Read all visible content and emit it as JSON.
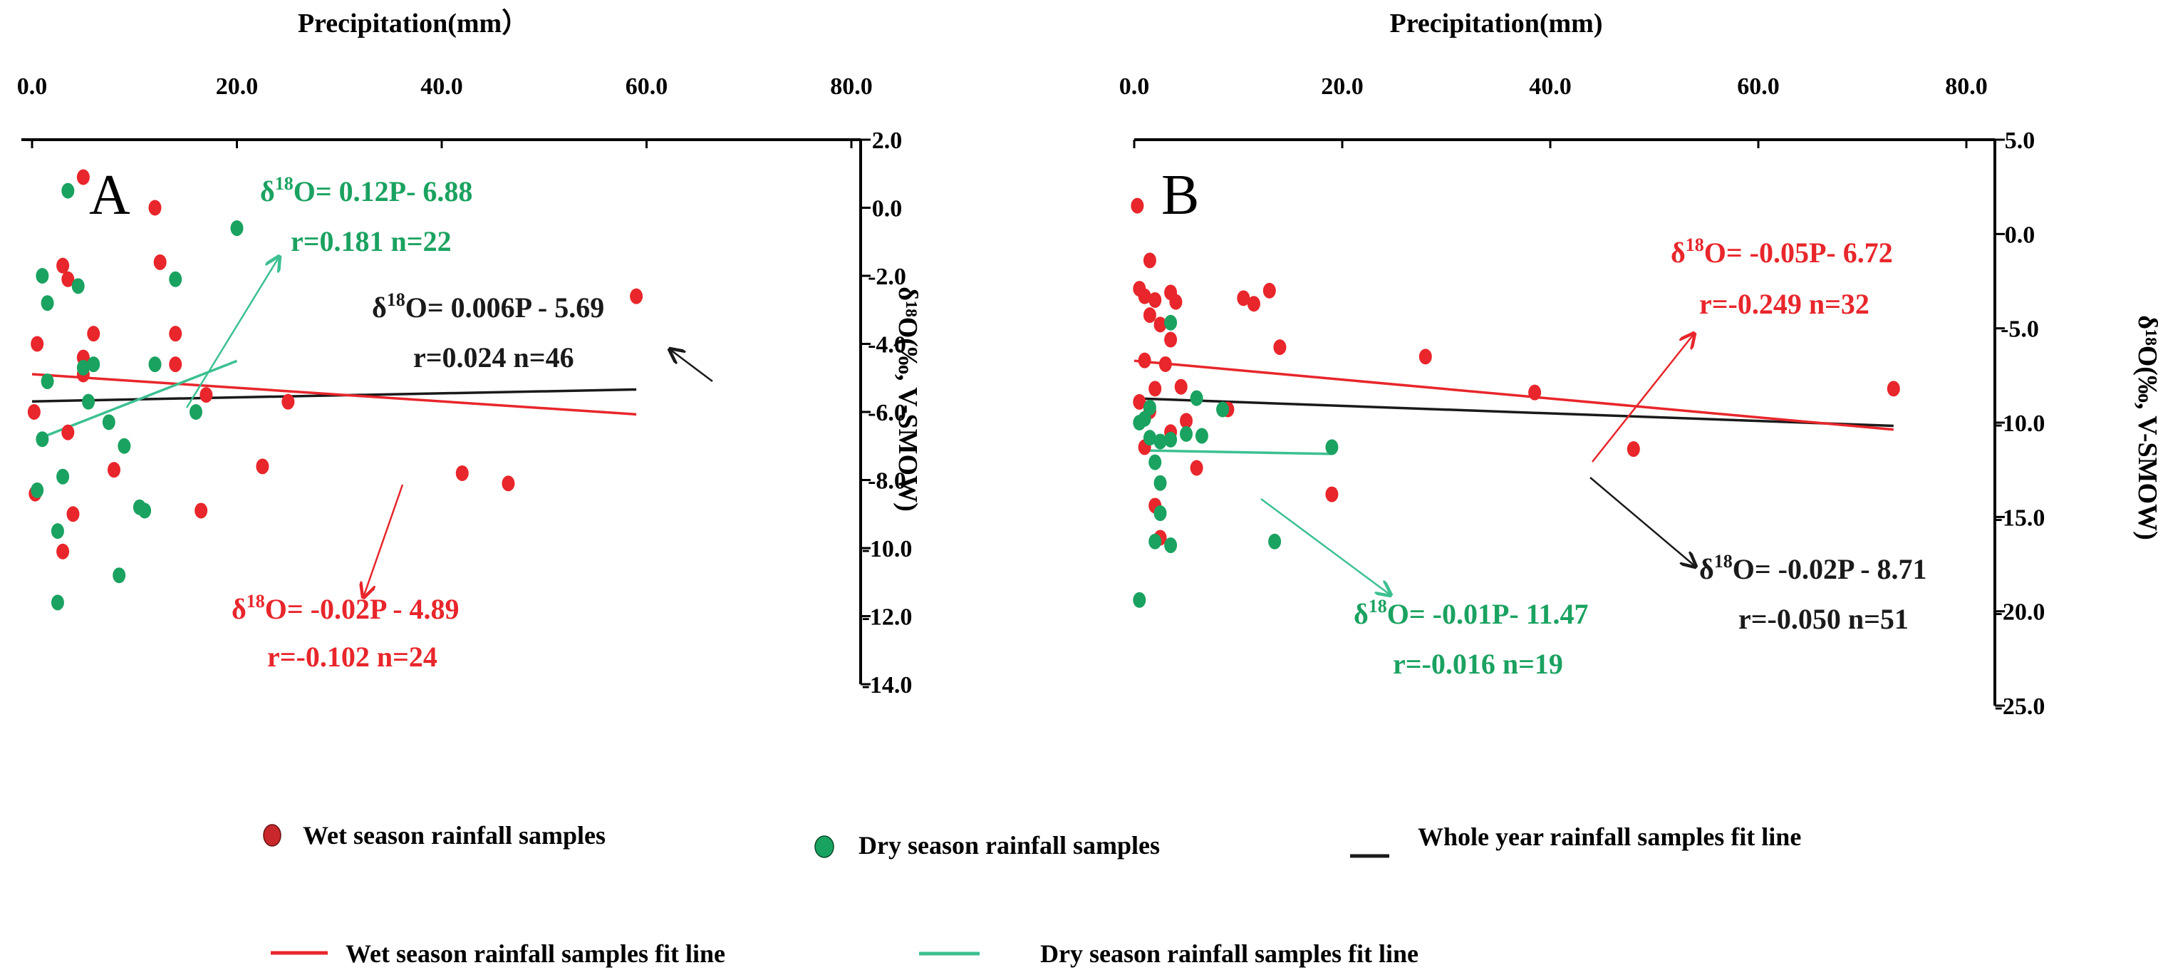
{
  "colors": {
    "wet": "#e8262b",
    "dry": "#1aa260",
    "whole": "#1a1a1a",
    "dryLine": "#3cc090"
  },
  "legend": {
    "wet_points": "Wet season rainfall samples",
    "dry_points": "Dry season rainfall samples",
    "whole_line": "Whole year rainfall samples fit line",
    "wet_line": "Wet season rainfall  samples fit line",
    "dry_line": "Dry season rainfall samples fit line"
  },
  "chart_data": [
    {
      "type": "scatter",
      "panel": "A",
      "xlabel": "Precipitation(mm）",
      "ylabel": "δ¹⁸O(‰, V-SMOW)",
      "xlim": [
        0,
        80
      ],
      "ylim": [
        -14,
        2
      ],
      "xticks": [
        "0.0",
        "20.0",
        "40.0",
        "60.0",
        "80.0"
      ],
      "yticks": [
        "2.0",
        "0.0",
        "-2.0",
        "-4.0",
        "-6.0",
        "-8.0",
        "-10.0",
        "-12.0",
        "-14.0"
      ],
      "series": [
        {
          "name": "Wet season rainfall samples",
          "color": "wet",
          "points": [
            [
              5,
              0.9
            ],
            [
              12,
              0.0
            ],
            [
              3,
              -1.7
            ],
            [
              3.5,
              -2.1
            ],
            [
              12.5,
              -1.6
            ],
            [
              6,
              -3.7
            ],
            [
              14,
              -3.7
            ],
            [
              0.5,
              -4.0
            ],
            [
              5,
              -4.4
            ],
            [
              14,
              -4.6
            ],
            [
              5,
              -4.9
            ],
            [
              17,
              -5.5
            ],
            [
              25,
              -5.7
            ],
            [
              3.5,
              -6.6
            ],
            [
              0.2,
              -6.0
            ],
            [
              8,
              -7.7
            ],
            [
              22.5,
              -7.6
            ],
            [
              16.5,
              -8.9
            ],
            [
              0.3,
              -8.4
            ],
            [
              4,
              -9.0
            ],
            [
              3,
              -10.1
            ],
            [
              42,
              -7.8
            ],
            [
              46.5,
              -8.1
            ],
            [
              59,
              -2.6
            ]
          ]
        },
        {
          "name": "Dry season rainfall samples",
          "color": "dry",
          "points": [
            [
              3.5,
              0.5
            ],
            [
              4.5,
              -2.3
            ],
            [
              14,
              -2.1
            ],
            [
              1,
              -2.0
            ],
            [
              1.5,
              -2.8
            ],
            [
              20,
              -0.6
            ],
            [
              1.5,
              -5.1
            ],
            [
              12,
              -4.6
            ],
            [
              5,
              -4.7
            ],
            [
              6,
              -4.6
            ],
            [
              5.5,
              -5.7
            ],
            [
              7.5,
              -6.3
            ],
            [
              16,
              -6.0
            ],
            [
              1,
              -6.8
            ],
            [
              9,
              -7.0
            ],
            [
              3,
              -7.9
            ],
            [
              10.5,
              -8.8
            ],
            [
              11,
              -8.9
            ],
            [
              0.5,
              -8.3
            ],
            [
              2.5,
              -9.5
            ],
            [
              8.5,
              -10.8
            ],
            [
              2.5,
              -11.6
            ]
          ]
        },
        {
          "name": "Whole year rainfall samples fit line",
          "color": "whole",
          "line": [
            [
              0,
              -5.69
            ],
            [
              59,
              -5.34
            ]
          ]
        },
        {
          "name": "Wet season rainfall  samples fit line",
          "color": "wet",
          "line": [
            [
              0,
              -4.89
            ],
            [
              59,
              -6.07
            ]
          ]
        },
        {
          "name": "Dry season rainfall samples fit line",
          "color": "dryLine",
          "line": [
            [
              0.5,
              -6.8
            ],
            [
              20,
              -4.5
            ]
          ]
        }
      ],
      "annotations": {
        "green_eq": "O= 0.12P- 6.88",
        "green_r": "r=0.181 n=22",
        "black_eq": "O= 0.006P - 5.69",
        "black_r": "r=0.024 n=46",
        "red_eq": "O= -0.02P - 4.89",
        "red_r": "r=-0.102 n=24"
      }
    },
    {
      "type": "scatter",
      "panel": "B",
      "xlabel": "Precipitation(mm)",
      "ylabel": "δ¹⁸O(‰, V-SMOW)",
      "xlim": [
        0,
        80
      ],
      "ylim": [
        -25,
        5
      ],
      "xticks": [
        "0.0",
        "20.0",
        "40.0",
        "60.0",
        "80.0"
      ],
      "yticks": [
        "5.0",
        "0.0",
        "-5.0",
        "-10.0",
        "-15.0",
        "-20.0",
        "-25.0"
      ],
      "series": [
        {
          "name": "Wet season rainfall samples",
          "color": "wet",
          "points": [
            [
              0.3,
              1.5
            ],
            [
              1.5,
              -1.4
            ],
            [
              0.5,
              -2.9
            ],
            [
              1,
              -3.3
            ],
            [
              2,
              -3.5
            ],
            [
              3.5,
              -3.1
            ],
            [
              4,
              -3.6
            ],
            [
              13,
              -3.0
            ],
            [
              10.5,
              -3.4
            ],
            [
              11.5,
              -3.7
            ],
            [
              1.5,
              -4.3
            ],
            [
              2.5,
              -4.8
            ],
            [
              3.5,
              -5.6
            ],
            [
              14,
              -6.0
            ],
            [
              28,
              -6.5
            ],
            [
              3,
              -6.9
            ],
            [
              1,
              -6.7
            ],
            [
              2,
              -8.2
            ],
            [
              4.5,
              -8.1
            ],
            [
              38.5,
              -8.4
            ],
            [
              73,
              -8.2
            ],
            [
              0.5,
              -8.9
            ],
            [
              1.5,
              -9.4
            ],
            [
              5,
              -9.9
            ],
            [
              9,
              -9.3
            ],
            [
              3.5,
              -10.5
            ],
            [
              6,
              -12.4
            ],
            [
              1,
              -11.3
            ],
            [
              2,
              -14.4
            ],
            [
              19,
              -13.8
            ],
            [
              48,
              -11.4
            ],
            [
              2.5,
              -16.1
            ]
          ]
        },
        {
          "name": "Dry season rainfall samples",
          "color": "dry",
          "points": [
            [
              3.5,
              -4.7
            ],
            [
              6,
              -8.7
            ],
            [
              8.5,
              -9.3
            ],
            [
              1,
              -9.8
            ],
            [
              1.5,
              -10.8
            ],
            [
              2.5,
              -11.0
            ],
            [
              3.5,
              -10.9
            ],
            [
              5,
              -10.6
            ],
            [
              6.5,
              -10.7
            ],
            [
              1.5,
              -9.2
            ],
            [
              0.5,
              -10.0
            ],
            [
              2,
              -12.1
            ],
            [
              2.5,
              -13.2
            ],
            [
              19,
              -11.3
            ],
            [
              2.5,
              -14.8
            ],
            [
              2,
              -16.3
            ],
            [
              3.5,
              -16.5
            ],
            [
              13.5,
              -16.3
            ],
            [
              0.5,
              -19.4
            ]
          ]
        },
        {
          "name": "Whole year rainfall samples fit line",
          "color": "whole",
          "line": [
            [
              0,
              -8.71
            ],
            [
              73,
              -10.17
            ]
          ]
        },
        {
          "name": "Wet season rainfall  samples fit line",
          "color": "wet",
          "line": [
            [
              0,
              -6.72
            ],
            [
              73,
              -10.37
            ]
          ]
        },
        {
          "name": "Dry season rainfall samples fit line",
          "color": "dryLine",
          "line": [
            [
              0.5,
              -11.47
            ],
            [
              19,
              -11.66
            ]
          ]
        }
      ],
      "annotations": {
        "red_eq": "O= -0.05P- 6.72",
        "red_r": "r=-0.249  n=32",
        "black_eq": "O= -0.02P - 8.71",
        "black_r": "r=-0.050  n=51",
        "green_eq": "O= -0.01P- 11.47",
        "green_r": "r=-0.016 n=19"
      }
    }
  ]
}
